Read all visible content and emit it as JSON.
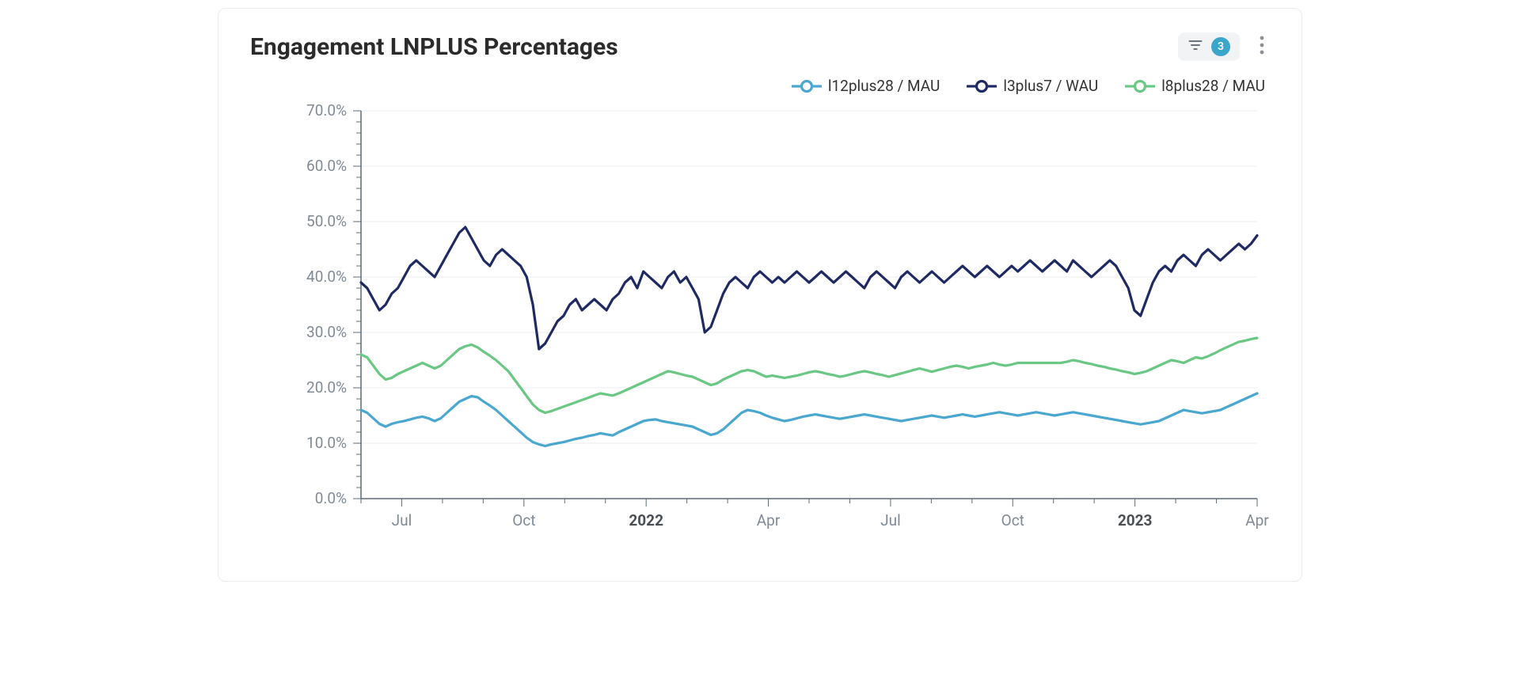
{
  "card": {
    "title": "Engagement LNPLUS Percentages",
    "filter": {
      "count": "3",
      "badge_bg": "#3aa6c9"
    }
  },
  "chart": {
    "type": "line",
    "background_color": "#ffffff",
    "grid_color": "#e9edf0",
    "axis_color": "#5d6b78",
    "axis_label_color": "#808a94",
    "axis_label_fontsize": 19,
    "line_width": 3.2,
    "y": {
      "min": 0.0,
      "max": 70.0,
      "tick_step": 10.0,
      "minor_step": 2.0,
      "ticks": [
        "0.0%",
        "10.0%",
        "20.0%",
        "30.0%",
        "40.0%",
        "50.0%",
        "60.0%",
        "70.0%"
      ]
    },
    "x": {
      "min_month": 5,
      "max_month": 27,
      "ticks": [
        {
          "m": 6,
          "label": "Jul",
          "bold": false
        },
        {
          "m": 9,
          "label": "Oct",
          "bold": false
        },
        {
          "m": 12,
          "label": "2022",
          "bold": true
        },
        {
          "m": 15,
          "label": "Apr",
          "bold": false
        },
        {
          "m": 18,
          "label": "Jul",
          "bold": false
        },
        {
          "m": 21,
          "label": "Oct",
          "bold": false
        },
        {
          "m": 24,
          "label": "2023",
          "bold": true
        },
        {
          "m": 27,
          "label": "Apr",
          "bold": false
        }
      ]
    },
    "legend": {
      "items": [
        {
          "key": "s1",
          "label": "l12plus28 / MAU"
        },
        {
          "key": "s2",
          "label": "l3plus7 / WAU"
        },
        {
          "key": "s3",
          "label": "l8plus28 / MAU"
        }
      ]
    },
    "series": {
      "s1": {
        "label": "l12plus28 / MAU",
        "color": "#4aa7cf",
        "values": [
          16.0,
          15.5,
          14.5,
          13.5,
          13.0,
          13.5,
          13.8,
          14.0,
          14.3,
          14.6,
          14.8,
          14.5,
          14.0,
          14.5,
          15.5,
          16.5,
          17.5,
          18.0,
          18.5,
          18.3,
          17.5,
          16.8,
          16.0,
          15.0,
          14.0,
          13.0,
          12.0,
          11.0,
          10.2,
          9.8,
          9.5,
          9.8,
          10.0,
          10.2,
          10.5,
          10.8,
          11.0,
          11.3,
          11.5,
          11.8,
          11.6,
          11.4,
          12.0,
          12.5,
          13.0,
          13.5,
          14.0,
          14.2,
          14.3,
          14.0,
          13.8,
          13.6,
          13.4,
          13.2,
          13.0,
          12.5,
          12.0,
          11.5,
          11.8,
          12.5,
          13.5,
          14.5,
          15.5,
          16.0,
          15.8,
          15.5,
          15.0,
          14.6,
          14.3,
          14.0,
          14.2,
          14.5,
          14.8,
          15.0,
          15.2,
          15.0,
          14.8,
          14.6,
          14.4,
          14.6,
          14.8,
          15.0,
          15.2,
          15.0,
          14.8,
          14.6,
          14.4,
          14.2,
          14.0,
          14.2,
          14.4,
          14.6,
          14.8,
          15.0,
          14.8,
          14.6,
          14.8,
          15.0,
          15.2,
          15.0,
          14.8,
          15.0,
          15.2,
          15.4,
          15.6,
          15.4,
          15.2,
          15.0,
          15.2,
          15.4,
          15.6,
          15.4,
          15.2,
          15.0,
          15.2,
          15.4,
          15.6,
          15.4,
          15.2,
          15.0,
          14.8,
          14.6,
          14.4,
          14.2,
          14.0,
          13.8,
          13.6,
          13.4,
          13.6,
          13.8,
          14.0,
          14.5,
          15.0,
          15.5,
          16.0,
          15.8,
          15.6,
          15.4,
          15.6,
          15.8,
          16.0,
          16.5,
          17.0,
          17.5,
          18.0,
          18.5,
          19.0
        ]
      },
      "s2": {
        "label": "l3plus7 / WAU",
        "color": "#1f2a63",
        "values": [
          39,
          38,
          36,
          34,
          35,
          37,
          38,
          40,
          42,
          43,
          42,
          41,
          40,
          42,
          44,
          46,
          48,
          49,
          47,
          45,
          43,
          42,
          44,
          45,
          44,
          43,
          42,
          40,
          35,
          27,
          28,
          30,
          32,
          33,
          35,
          36,
          34,
          35,
          36,
          35,
          34,
          36,
          37,
          39,
          40,
          38,
          41,
          40,
          39,
          38,
          40,
          41,
          39,
          40,
          38,
          36,
          30,
          31,
          34,
          37,
          39,
          40,
          39,
          38,
          40,
          41,
          40,
          39,
          40,
          39,
          40,
          41,
          40,
          39,
          40,
          41,
          40,
          39,
          40,
          41,
          40,
          39,
          38,
          40,
          41,
          40,
          39,
          38,
          40,
          41,
          40,
          39,
          40,
          41,
          40,
          39,
          40,
          41,
          42,
          41,
          40,
          41,
          42,
          41,
          40,
          41,
          42,
          41,
          42,
          43,
          42,
          41,
          42,
          43,
          42,
          41,
          43,
          42,
          41,
          40,
          41,
          42,
          43,
          42,
          40,
          38,
          34,
          33,
          36,
          39,
          41,
          42,
          41,
          43,
          44,
          43,
          42,
          44,
          45,
          44,
          43,
          44,
          45,
          46,
          45,
          46,
          47.5
        ]
      },
      "s3": {
        "label": "l8plus28 / MAU",
        "color": "#6ac784",
        "values": [
          26.0,
          25.5,
          24.0,
          22.5,
          21.5,
          21.8,
          22.5,
          23.0,
          23.5,
          24.0,
          24.5,
          24.0,
          23.5,
          24.0,
          25.0,
          26.0,
          27.0,
          27.5,
          27.8,
          27.3,
          26.5,
          25.8,
          25.0,
          24.0,
          23.0,
          21.5,
          20.0,
          18.5,
          17.0,
          16.0,
          15.5,
          15.8,
          16.2,
          16.6,
          17.0,
          17.4,
          17.8,
          18.2,
          18.6,
          19.0,
          18.8,
          18.6,
          19.0,
          19.5,
          20.0,
          20.5,
          21.0,
          21.5,
          22.0,
          22.5,
          23.0,
          22.8,
          22.5,
          22.2,
          22.0,
          21.5,
          21.0,
          20.5,
          20.8,
          21.5,
          22.0,
          22.5,
          23.0,
          23.2,
          23.0,
          22.5,
          22.0,
          22.2,
          22.0,
          21.8,
          22.0,
          22.2,
          22.5,
          22.8,
          23.0,
          22.8,
          22.5,
          22.3,
          22.0,
          22.2,
          22.5,
          22.8,
          23.0,
          22.8,
          22.5,
          22.3,
          22.0,
          22.3,
          22.6,
          22.9,
          23.2,
          23.5,
          23.2,
          22.9,
          23.2,
          23.5,
          23.8,
          24.0,
          23.8,
          23.5,
          23.8,
          24.0,
          24.2,
          24.5,
          24.2,
          24.0,
          24.2,
          24.5,
          24.5,
          24.5,
          24.5,
          24.5,
          24.5,
          24.5,
          24.5,
          24.7,
          25.0,
          24.8,
          24.5,
          24.3,
          24.0,
          23.8,
          23.5,
          23.3,
          23.0,
          22.8,
          22.5,
          22.7,
          23.0,
          23.5,
          24.0,
          24.5,
          25.0,
          24.8,
          24.5,
          25.0,
          25.5,
          25.3,
          25.7,
          26.2,
          26.8,
          27.3,
          27.8,
          28.3,
          28.5,
          28.8,
          29.0
        ]
      }
    }
  }
}
